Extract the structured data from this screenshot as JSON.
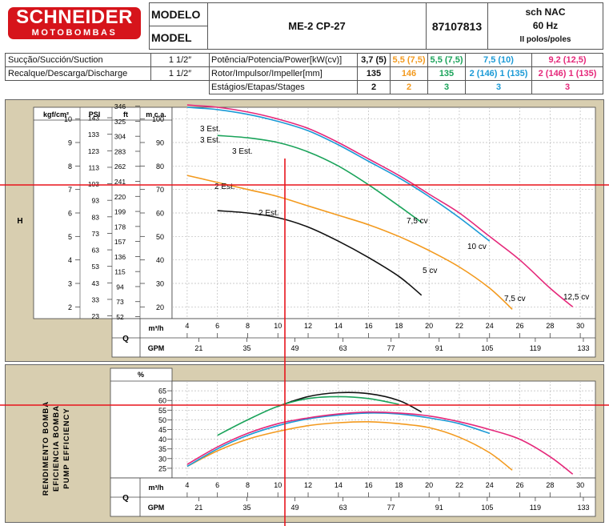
{
  "brand": {
    "name": "SCHNEIDER",
    "sub": "MOTOBOMBAS"
  },
  "header": {
    "modelo_label": "MODELO",
    "model_label": "MODEL",
    "model_value": "ME-2 CP-27",
    "code": "87107813",
    "variant": "sch NAC",
    "freq": "60 Hz",
    "poles": "II polos/poles"
  },
  "specs": {
    "suction_label": "Sucção/Succión/Suction",
    "suction_value": "1 1/2″",
    "discharge_label": "Recalque/Descarga/Discharge",
    "discharge_value": "1 1/2″",
    "power_label": "Potência/Potencia/Power[kW(cv)]",
    "rotor_label": "Rotor/Impulsor/Impeller[mm]",
    "stages_label": "Estágios/Etapas/Stages",
    "power": [
      "3,7 (5)",
      "5,5 (7,5)",
      "5,5 (7,5)",
      "7,5 (10)",
      "9,2 (12,5)"
    ],
    "rotor": [
      "135",
      "146",
      "135",
      "2 (146) 1 (135)",
      "2 (146) 1 (135)"
    ],
    "stages": [
      "2",
      "2",
      "3",
      "3",
      "3"
    ],
    "colors": [
      "#111111",
      "#f39a1e",
      "#1aa35a",
      "#1b9ad6",
      "#e5287a"
    ]
  },
  "chart_data": [
    {
      "type": "line",
      "ylabel": "H",
      "unit_headers": [
        "kgf/cm²",
        "PSI",
        "ft",
        "m c.a."
      ],
      "scale_labels": {
        "kgf": [
          "10",
          "9",
          "8",
          "7",
          "6",
          "5",
          "4",
          "3",
          "2"
        ],
        "psi": [
          "143",
          "133",
          "123",
          "113",
          "103",
          "93",
          "83",
          "73",
          "63",
          "53",
          "43",
          "33",
          "23"
        ],
        "ft": [
          "346",
          "325",
          "304",
          "283",
          "262",
          "241",
          "220",
          "199",
          "178",
          "157",
          "136",
          "115",
          "94",
          "73",
          "52"
        ]
      },
      "ylim": [
        15,
        105
      ],
      "yticks": [
        20,
        30,
        40,
        50,
        60,
        70,
        80,
        90,
        100
      ],
      "xlim": [
        3,
        31
      ],
      "xticks": [
        4,
        6,
        8,
        10,
        12,
        14,
        16,
        18,
        20,
        22,
        24,
        26,
        28,
        30
      ],
      "gpm_ticks": [
        "21",
        "35",
        "49",
        "63",
        "77",
        "91",
        "105",
        "119",
        "133"
      ],
      "x_unit_m3h": "m³/h",
      "x_unit_gpm": "GPM",
      "q_label": "Q",
      "series": [
        {
          "color": "#111111",
          "x": [
            6,
            8,
            10,
            12,
            14,
            16,
            18,
            19.5
          ],
          "y": [
            61,
            60,
            58,
            54,
            48,
            41,
            33,
            25
          ]
        },
        {
          "color": "#f39a1e",
          "x": [
            4,
            6,
            8,
            10,
            12,
            14,
            16,
            18,
            20,
            22,
            24,
            25.5
          ],
          "y": [
            76,
            73,
            70,
            67,
            63,
            59,
            55,
            50,
            44,
            37,
            28,
            19
          ]
        },
        {
          "color": "#1aa35a",
          "x": [
            6,
            8,
            10,
            12,
            14,
            16,
            18,
            19.5
          ],
          "y": [
            93,
            92,
            90,
            86,
            80,
            72,
            63,
            56
          ]
        },
        {
          "color": "#1b9ad6",
          "x": [
            4,
            6,
            8,
            10,
            12,
            14,
            16,
            18,
            20,
            22,
            24
          ],
          "y": [
            105,
            104,
            102,
            99,
            95,
            89,
            82,
            75,
            67,
            58,
            48
          ]
        },
        {
          "color": "#e5287a",
          "x": [
            4,
            6,
            8,
            10,
            12,
            14,
            16,
            18,
            20,
            22,
            24,
            26,
            28,
            29.5
          ],
          "y": [
            106,
            105,
            103,
            100,
            96,
            90,
            83,
            76,
            68,
            60,
            50,
            40,
            28,
            20
          ]
        }
      ],
      "annotations": [
        "3 Est.",
        "3 Est.",
        "3 Est.",
        "2 Est.",
        "2 Est.",
        "7,5 cv",
        "10 cv",
        "5 cv",
        "7,5 cv",
        "12,5 cv"
      ]
    },
    {
      "type": "line",
      "ylabel": "RENDIMENTO BOMBA / EFICIENCIA BOMBA / PUMP EFFICIENCY",
      "ylabel_lines": [
        "RENDIMENTO BOMBA",
        "EFICIENCIA BOMBA",
        "PUMP EFFICIENCY"
      ],
      "unit_header": "%",
      "ylim": [
        20,
        70
      ],
      "yticks": [
        25,
        30,
        35,
        40,
        45,
        50,
        55,
        60,
        65
      ],
      "xlim": [
        3,
        31
      ],
      "xticks": [
        4,
        6,
        8,
        10,
        12,
        14,
        16,
        18,
        20,
        22,
        24,
        26,
        28,
        30
      ],
      "gpm_ticks": [
        "21",
        "35",
        "49",
        "63",
        "77",
        "91",
        "105",
        "119",
        "133"
      ],
      "x_unit_m3h": "m³/h",
      "x_unit_gpm": "GPM",
      "q_label": "Q",
      "series": [
        {
          "color": "#111111",
          "x": [
            10,
            12,
            14,
            16,
            18,
            19.5
          ],
          "y": [
            57,
            62,
            64,
            63.5,
            60,
            54
          ]
        },
        {
          "color": "#1aa35a",
          "x": [
            6,
            8,
            10,
            12,
            14,
            16,
            18
          ],
          "y": [
            42,
            50,
            57,
            61,
            62,
            61,
            58
          ]
        },
        {
          "color": "#f39a1e",
          "x": [
            4,
            6,
            8,
            10,
            12,
            14,
            16,
            18,
            20,
            22,
            24,
            25.5
          ],
          "y": [
            26,
            34,
            40,
            44,
            47,
            48.5,
            49,
            48,
            46,
            41,
            33,
            24
          ]
        },
        {
          "color": "#1b9ad6",
          "x": [
            4,
            6,
            8,
            10,
            12,
            14,
            16,
            18,
            20,
            22,
            24
          ],
          "y": [
            26,
            35,
            42,
            47,
            50.5,
            52.5,
            53.5,
            53,
            51,
            48,
            43
          ]
        },
        {
          "color": "#e5287a",
          "x": [
            4,
            6,
            8,
            10,
            12,
            14,
            16,
            18,
            20,
            22,
            24,
            26,
            28,
            29.5
          ],
          "y": [
            27,
            36,
            43,
            48,
            51,
            53,
            54,
            53.5,
            52,
            49,
            45,
            40,
            31,
            22
          ]
        }
      ]
    }
  ]
}
